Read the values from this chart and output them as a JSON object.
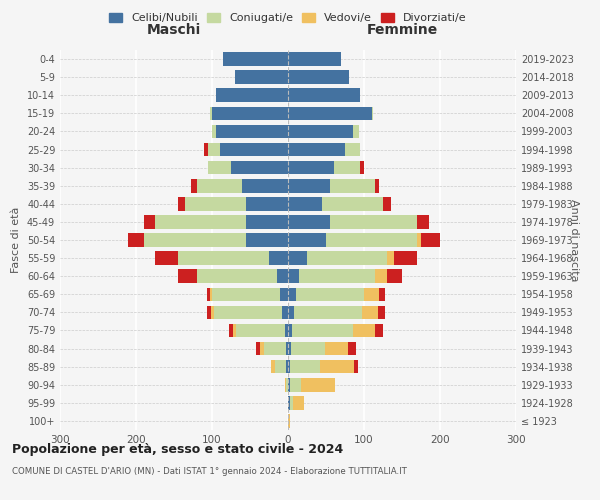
{
  "age_groups": [
    "100+",
    "95-99",
    "90-94",
    "85-89",
    "80-84",
    "75-79",
    "70-74",
    "65-69",
    "60-64",
    "55-59",
    "50-54",
    "45-49",
    "40-44",
    "35-39",
    "30-34",
    "25-29",
    "20-24",
    "15-19",
    "10-14",
    "5-9",
    "0-4"
  ],
  "birth_years": [
    "≤ 1923",
    "1924-1928",
    "1929-1933",
    "1934-1938",
    "1939-1943",
    "1944-1948",
    "1949-1953",
    "1954-1958",
    "1959-1963",
    "1964-1968",
    "1969-1973",
    "1974-1978",
    "1979-1983",
    "1984-1988",
    "1989-1993",
    "1994-1998",
    "1999-2003",
    "2004-2008",
    "2009-2013",
    "2014-2018",
    "2019-2023"
  ],
  "colors": {
    "celibi": "#4472a0",
    "coniugati": "#c5d9a0",
    "vedovi": "#f0c060",
    "divorziati": "#cc2020"
  },
  "maschi": {
    "celibi": [
      0,
      0,
      0,
      2,
      2,
      4,
      8,
      10,
      15,
      25,
      55,
      55,
      55,
      60,
      75,
      90,
      95,
      100,
      95,
      70,
      85
    ],
    "coniugati": [
      0,
      0,
      3,
      15,
      30,
      65,
      90,
      90,
      105,
      120,
      135,
      120,
      80,
      60,
      30,
      15,
      5,
      2,
      0,
      0,
      0
    ],
    "vedovi": [
      0,
      0,
      1,
      5,
      5,
      3,
      3,
      2,
      0,
      0,
      0,
      0,
      0,
      0,
      0,
      0,
      0,
      0,
      0,
      0,
      0
    ],
    "divorziati": [
      0,
      0,
      0,
      0,
      5,
      5,
      5,
      5,
      25,
      30,
      20,
      15,
      10,
      8,
      0,
      5,
      0,
      0,
      0,
      0,
      0
    ]
  },
  "femmine": {
    "nubili": [
      0,
      2,
      2,
      2,
      4,
      5,
      8,
      10,
      15,
      25,
      50,
      55,
      45,
      55,
      60,
      75,
      85,
      110,
      95,
      80,
      70
    ],
    "coniugate": [
      0,
      4,
      15,
      40,
      45,
      80,
      90,
      90,
      100,
      105,
      120,
      115,
      80,
      60,
      35,
      20,
      8,
      2,
      0,
      0,
      0
    ],
    "vedove": [
      2,
      15,
      45,
      45,
      30,
      30,
      20,
      20,
      15,
      10,
      5,
      0,
      0,
      0,
      0,
      0,
      0,
      0,
      0,
      0,
      0
    ],
    "divorziate": [
      0,
      0,
      0,
      5,
      10,
      10,
      10,
      8,
      20,
      30,
      25,
      15,
      10,
      5,
      5,
      0,
      0,
      0,
      0,
      0,
      0
    ]
  },
  "xlim": 300,
  "title": "Popolazione per età, sesso e stato civile - 2024",
  "subtitle": "COMUNE DI CASTEL D'ARIO (MN) - Dati ISTAT 1° gennaio 2024 - Elaborazione TUTTITALIA.IT",
  "xlabel_left": "Maschi",
  "xlabel_right": "Femmine",
  "ylabel_left": "Fasce di età",
  "ylabel_right": "Anni di nascita",
  "legend_labels": [
    "Celibi/Nubili",
    "Coniugati/e",
    "Vedovi/e",
    "Divorziati/e"
  ],
  "background_color": "#f5f5f5"
}
